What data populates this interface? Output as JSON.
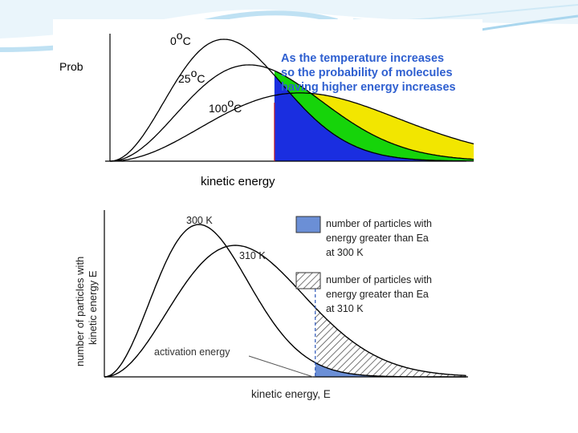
{
  "chart_data": [
    {
      "type": "line",
      "title": "",
      "xlabel": "kinetic energy",
      "ylabel": "Prob",
      "grid": false,
      "series": [
        {
          "name": "0oC",
          "peak_x": 0.36,
          "peak_y": 1.0,
          "color": "#000000"
        },
        {
          "name": "25oC",
          "peak_x": 0.44,
          "peak_y": 0.79,
          "color": "#000000"
        },
        {
          "name": "100oC",
          "peak_x": 0.6,
          "peak_y": 0.56,
          "color": "#000000"
        }
      ],
      "threshold_x": 0.52,
      "threshold_color": "#cc2222",
      "fill_colors": {
        "0oC": "#1a2ee0",
        "25oC": "#16d40a",
        "100oC": "#f2e600"
      },
      "labels": {
        "c0": {
          "num": "0",
          "deg": "o",
          "unit": "C"
        },
        "c25": {
          "num": "25",
          "deg": "o",
          "unit": "C"
        },
        "c100": {
          "num": "100",
          "deg": "o",
          "unit": "C"
        }
      },
      "annotation": [
        "As the temperature increases",
        "so the probability of molecules",
        "having higher energy increases"
      ],
      "annotation_color": "#2e5fd0"
    },
    {
      "type": "line",
      "title": "",
      "xlabel": "kinetic energy, E",
      "ylabel_lines": [
        "number of particles with",
        "kinetic energy E"
      ],
      "grid": false,
      "series": [
        {
          "name": "300 K",
          "peak_x": 0.26,
          "peak_y": 0.95,
          "color": "#000000"
        },
        {
          "name": "310 K",
          "peak_x": 0.36,
          "peak_y": 0.82,
          "color": "#000000"
        }
      ],
      "activation_x": 0.58,
      "activation_label": "activation energy",
      "fill_color": "#6b8fd6",
      "legend": [
        {
          "lines": [
            "number of particles with",
            "energy greater than Ea",
            "at 300 K"
          ],
          "style": "solid"
        },
        {
          "lines": [
            "number of particles with",
            "energy greater than Ea",
            "at 310 K"
          ],
          "style": "hatched"
        }
      ]
    }
  ]
}
